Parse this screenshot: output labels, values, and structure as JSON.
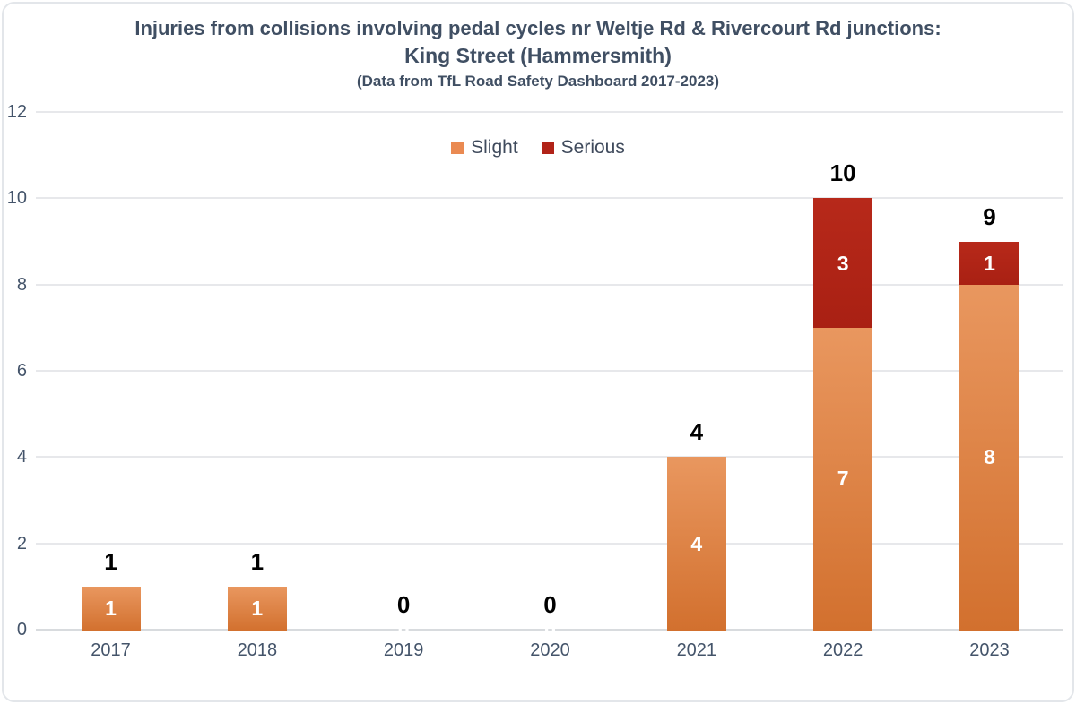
{
  "title": {
    "line1": "Injuries from collisions involving pedal cycles nr Weltje Rd & Rivercourt Rd junctions:",
    "line2": "King Street (Hammersmith)",
    "subtitle": "(Data from TfL Road Safety Dashboard 2017-2023)"
  },
  "colors": {
    "title_text": "#404f63",
    "axis_text": "#44546a",
    "gridline": "#e7e8eb",
    "axis_line": "#d8dbde",
    "total_label": "#000000",
    "segment_label": "#ffffff"
  },
  "chart_data": {
    "type": "bar",
    "stacked": true,
    "title": "Injuries from collisions involving pedal cycles nr Weltje Rd & Rivercourt Rd junctions: King Street (Hammersmith)",
    "subtitle": "(Data from TfL Road Safety Dashboard 2017-2023)",
    "categories": [
      "2017",
      "2018",
      "2019",
      "2020",
      "2021",
      "2022",
      "2023"
    ],
    "series": [
      {
        "name": "Slight",
        "legend_color": "#ea8a52",
        "color_top": "#e9975f",
        "color_bottom": "#d2702e",
        "values": [
          1,
          1,
          0,
          0,
          4,
          7,
          8
        ]
      },
      {
        "name": "Serious",
        "legend_color": "#b12318",
        "color_top": "#b7291a",
        "color_bottom": "#a92013",
        "values": [
          0,
          0,
          0,
          0,
          0,
          3,
          1
        ]
      }
    ],
    "totals": [
      1,
      1,
      0,
      0,
      4,
      10,
      9
    ],
    "xlabel": "",
    "ylabel": "",
    "ylim": [
      0,
      12
    ],
    "yticks": [
      0,
      2,
      4,
      6,
      8,
      10,
      12
    ],
    "grid": true,
    "legend_position": "top-center",
    "data_labels": {
      "segment": "white bold, centered inside each stacked segment (shown when value > 0; zero totals show white 0 at axis)",
      "total": "black bold, centered above each column (0 shown above axis for empty years)"
    }
  }
}
